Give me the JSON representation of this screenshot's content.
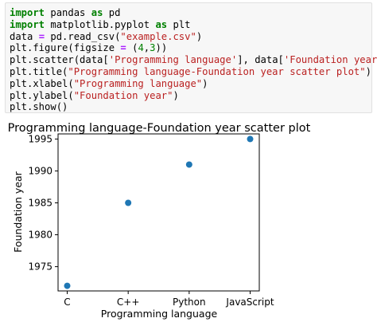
{
  "code": {
    "lines": [
      [
        {
          "t": "kw",
          "v": "import"
        },
        {
          "t": "plain",
          "v": " pandas "
        },
        {
          "t": "kw",
          "v": "as"
        },
        {
          "t": "plain",
          "v": " pd"
        }
      ],
      [
        {
          "t": "kw",
          "v": "import"
        },
        {
          "t": "plain",
          "v": " matplotlib.pyplot "
        },
        {
          "t": "kw",
          "v": "as"
        },
        {
          "t": "plain",
          "v": " plt"
        }
      ],
      [
        {
          "t": "plain",
          "v": "data "
        },
        {
          "t": "op",
          "v": "="
        },
        {
          "t": "plain",
          "v": " pd.read_csv("
        },
        {
          "t": "str",
          "v": "\"example.csv\""
        },
        {
          "t": "plain",
          "v": ")"
        }
      ],
      [
        {
          "t": "plain",
          "v": "plt.figure(figsize "
        },
        {
          "t": "op",
          "v": "="
        },
        {
          "t": "plain",
          "v": " ("
        },
        {
          "t": "num",
          "v": "4"
        },
        {
          "t": "plain",
          "v": ","
        },
        {
          "t": "num",
          "v": "3"
        },
        {
          "t": "plain",
          "v": "))"
        }
      ],
      [
        {
          "t": "plain",
          "v": "plt.scatter(data["
        },
        {
          "t": "str",
          "v": "'Programming language'"
        },
        {
          "t": "plain",
          "v": "], data["
        },
        {
          "t": "str",
          "v": "'Foundation year'"
        },
        {
          "t": "plain",
          "v": "])"
        }
      ],
      [
        {
          "t": "plain",
          "v": "plt.title("
        },
        {
          "t": "str",
          "v": "\"Programming language-Foundation year scatter plot\""
        },
        {
          "t": "plain",
          "v": ")"
        }
      ],
      [
        {
          "t": "plain",
          "v": "plt.xlabel("
        },
        {
          "t": "str",
          "v": "\"Programming language\""
        },
        {
          "t": "plain",
          "v": ")"
        }
      ],
      [
        {
          "t": "plain",
          "v": "plt.ylabel("
        },
        {
          "t": "str",
          "v": "\"Foundation year\""
        },
        {
          "t": "plain",
          "v": ")"
        }
      ],
      [
        {
          "t": "plain",
          "v": "plt.show()"
        }
      ]
    ]
  },
  "chart_data": {
    "type": "scatter",
    "title": "Programming language-Foundation year scatter plot",
    "xlabel": "Programming language",
    "ylabel": "Foundation year",
    "categories": [
      "C",
      "C++",
      "Python",
      "JavaScript"
    ],
    "values": [
      1972,
      1985,
      1991,
      1995
    ],
    "ylim": [
      1971.2,
      1995.8
    ],
    "yticks": [
      1975,
      1980,
      1985,
      1990,
      1995
    ],
    "grid": false,
    "marker_color": "#1f77b4"
  }
}
